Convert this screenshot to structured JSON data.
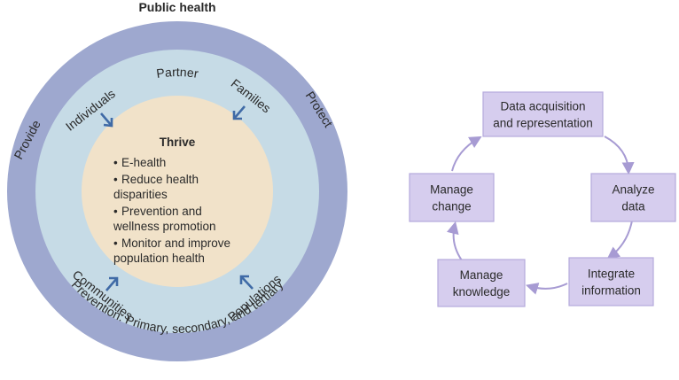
{
  "title": "Public health",
  "outer_ring": {
    "top": "Partner",
    "left": "Provide",
    "right": "Protect",
    "bottom": "Prevention: Primary, secondary, and tertiary"
  },
  "middle_ring": {
    "top_left": "Individuals",
    "top_right": "Families",
    "bottom_left": "Communities",
    "bottom_right": "Populations"
  },
  "core": {
    "heading": "Thrive",
    "bullets": [
      {
        "lines": [
          "E-health"
        ]
      },
      {
        "lines": [
          "Reduce health",
          "disparities"
        ]
      },
      {
        "lines": [
          "Prevention and",
          "wellness promotion"
        ]
      },
      {
        "lines": [
          "Monitor and improve",
          "population health"
        ]
      }
    ],
    "bullet_char": "•"
  },
  "cycle": {
    "steps": [
      {
        "lines": [
          "Data acquisition",
          "and representation"
        ]
      },
      {
        "lines": [
          "Analyze",
          "data"
        ]
      },
      {
        "lines": [
          "Integrate",
          "information"
        ]
      },
      {
        "lines": [
          "Manage",
          "knowledge"
        ]
      },
      {
        "lines": [
          "Manage",
          "change"
        ]
      }
    ]
  },
  "colors": {
    "outer": "#9ea8cf",
    "middle": "#c6dbe6",
    "inner": "#f1e2c9",
    "arrow_blue": "#3f6aa6",
    "box_fill": "#d6cdee",
    "box_stroke": "#b4a9dc",
    "cycle_arrow": "#a79bd3"
  }
}
